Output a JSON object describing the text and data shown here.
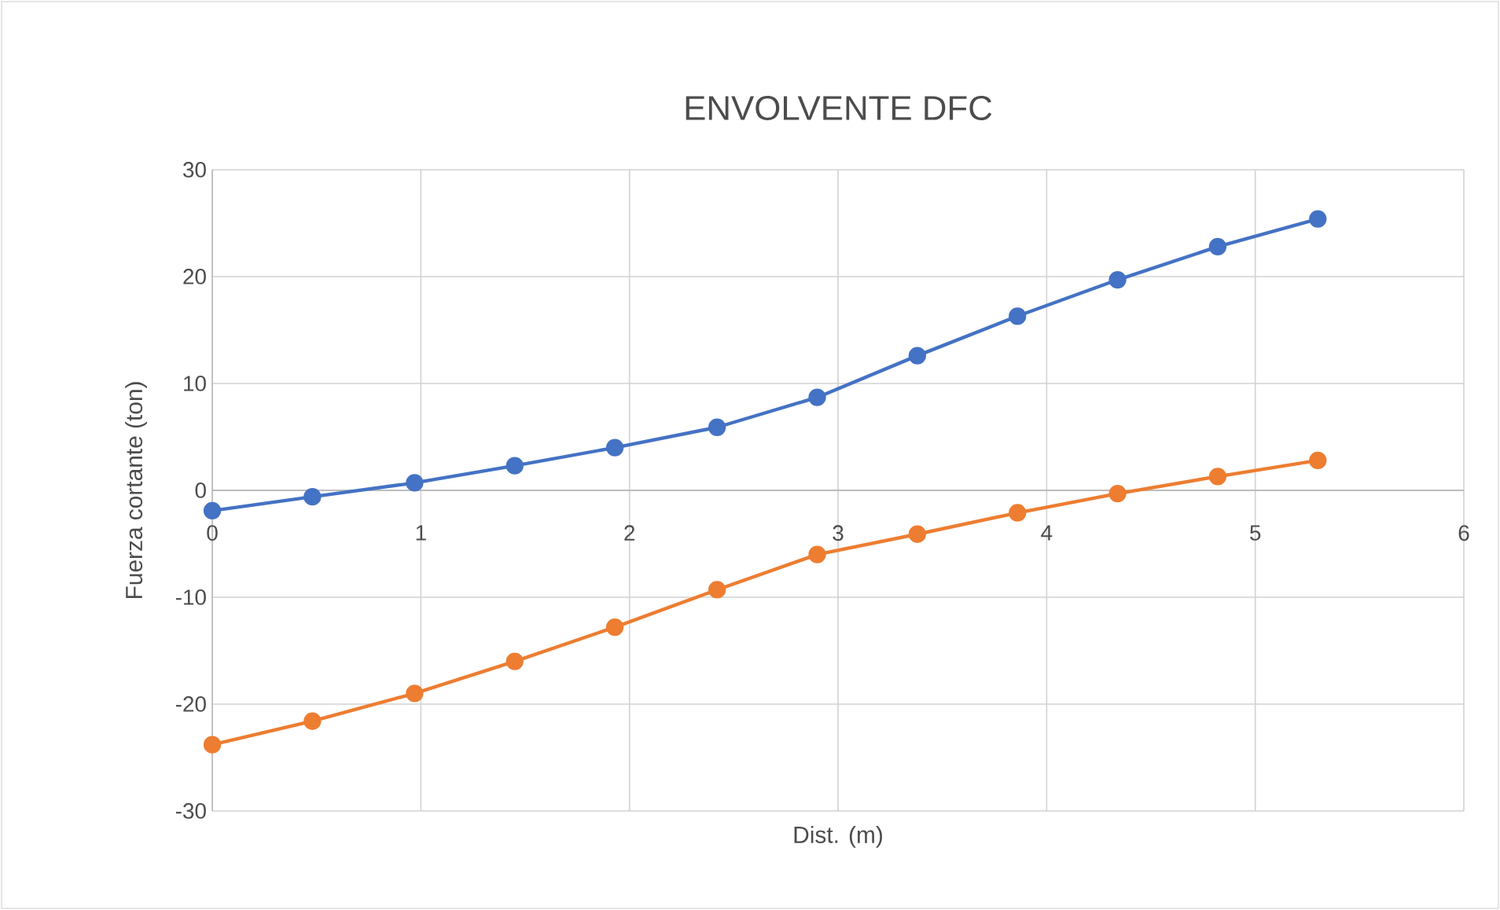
{
  "chart_data": {
    "type": "line",
    "title": "ENVOLVENTE DFC",
    "xlabel": "Dist. (m)",
    "ylabel": "Fuerza cortante (ton)",
    "x": [
      0,
      0.48,
      0.97,
      1.45,
      1.93,
      2.42,
      2.9,
      3.38,
      3.86,
      4.34,
      4.82,
      5.3
    ],
    "series": [
      {
        "color": "#4472c4",
        "values": [
          -1.9,
          -0.6,
          0.7,
          2.3,
          4.0,
          5.9,
          8.7,
          12.6,
          16.3,
          19.7,
          22.8,
          25.4
        ]
      },
      {
        "color": "#ed7d31",
        "values": [
          -23.8,
          -21.6,
          -19.0,
          -16.0,
          -12.8,
          -9.3,
          -6.0,
          -4.1,
          -2.1,
          -0.3,
          1.3,
          2.8
        ]
      }
    ],
    "xlim": [
      0,
      6
    ],
    "ylim": [
      -30,
      30
    ],
    "xticks": [
      0,
      1,
      2,
      3,
      4,
      5,
      6
    ],
    "yticks": [
      -30,
      -20,
      -10,
      0,
      10,
      20,
      30
    ],
    "grid": true,
    "marker": "circle",
    "line_style": "solid"
  }
}
